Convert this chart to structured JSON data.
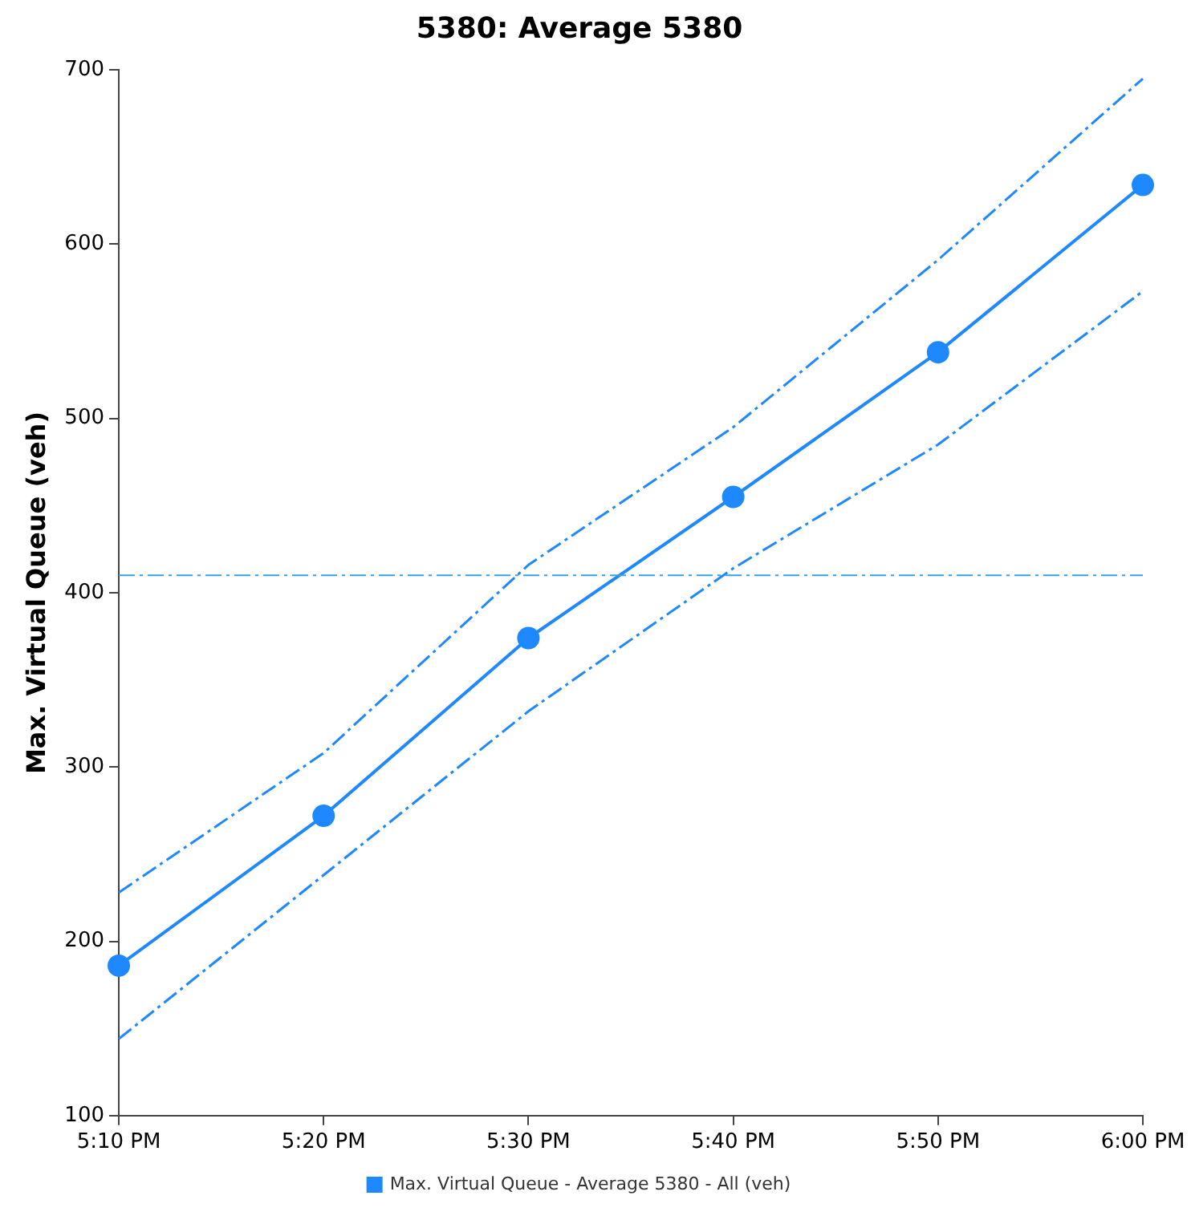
{
  "chart_data": {
    "type": "line",
    "title": "5380: Average 5380",
    "ylabel": "Max. Virtual Queue (veh)",
    "categories": [
      "5:10 PM",
      "5:20 PM",
      "5:30 PM",
      "5:40 PM",
      "5:50 PM",
      "6:00 PM"
    ],
    "series": [
      {
        "name": "Max. Virtual Queue - Average 5380 - All (veh)",
        "color": "#1e88ff",
        "values": [
          186,
          272,
          374,
          455,
          538,
          634
        ]
      },
      {
        "color": "#1e88ff",
        "values": [
          228,
          308,
          416,
          495,
          591,
          695
        ],
        "line_style": "dashed",
        "marker": "none"
      },
      {
        "color": "#1e88ff",
        "values": [
          144,
          238,
          332,
          414,
          485,
          573
        ],
        "line_style": "dashed",
        "marker": "none"
      }
    ],
    "ylim": [
      100,
      700
    ],
    "yticks": [
      100,
      200,
      300,
      400,
      500,
      600,
      700
    ],
    "ref_lines": [
      {
        "axis": "y",
        "value": 410,
        "color": "#3aa0e8",
        "line_style": "dashed"
      }
    ],
    "grid": false,
    "legend": "bottom",
    "marker": "circle",
    "line_style": "solid"
  }
}
